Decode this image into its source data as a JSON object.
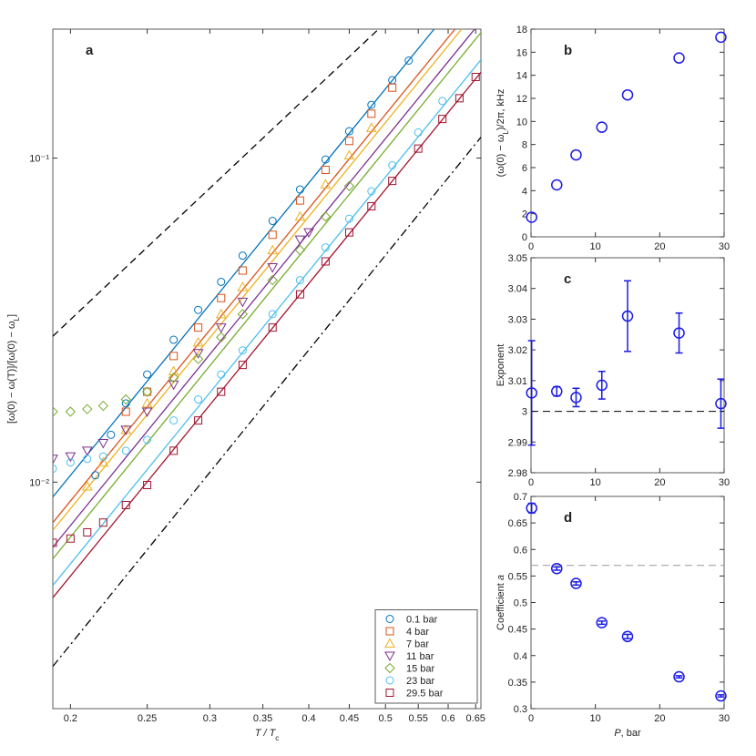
{
  "chart_data": [
    {
      "type": "scatter",
      "label": "a",
      "xlog": true,
      "ylog": true,
      "xlabel": "T / T",
      "xlabel_sub": "c",
      "ylabel": "[ω(0) − ω(T)]/[ω(0) − ω",
      "ylabel_sub": "L",
      "ylabel_end": "]",
      "xlim": [
        0.19,
        0.66
      ],
      "xticks": [
        0.2,
        0.25,
        0.3,
        0.35,
        0.4,
        0.45,
        0.5,
        0.55,
        0.6,
        0.65
      ],
      "ylim": [
        0.002,
        0.25
      ],
      "yticks": [
        {
          "value": 0.01,
          "label": "10⁻²"
        },
        {
          "value": 0.1,
          "label": "10⁻¹"
        }
      ],
      "legend": "lower right",
      "series": [
        {
          "name": "0.1 bar",
          "color": "#0072BD",
          "marker": "circle",
          "x": [
            0.215,
            0.225,
            0.235,
            0.25,
            0.27,
            0.29,
            0.31,
            0.33,
            0.36,
            0.39,
            0.42,
            0.45,
            0.48,
            0.51,
            0.535
          ],
          "values": [
            0.0105,
            0.014,
            0.0175,
            0.0215,
            0.0275,
            0.034,
            0.0415,
            0.05,
            0.064,
            0.08,
            0.099,
            0.121,
            0.146,
            0.174,
            0.2
          ]
        },
        {
          "name": "4 bar",
          "color": "#D95319",
          "marker": "square",
          "x": [
            0.235,
            0.25,
            0.27,
            0.29,
            0.31,
            0.33,
            0.36,
            0.39,
            0.42,
            0.45,
            0.48,
            0.51
          ],
          "values": [
            0.0165,
            0.019,
            0.0245,
            0.03,
            0.037,
            0.045,
            0.058,
            0.074,
            0.092,
            0.113,
            0.137,
            0.165
          ]
        },
        {
          "name": "7 bar",
          "color": "#EDB120",
          "marker": "triangle-up",
          "x": [
            0.21,
            0.22,
            0.235,
            0.25,
            0.27,
            0.29,
            0.31,
            0.33,
            0.36,
            0.39,
            0.42,
            0.45,
            0.48
          ],
          "values": [
            0.0097,
            0.0115,
            0.0145,
            0.0175,
            0.022,
            0.027,
            0.033,
            0.04,
            0.052,
            0.066,
            0.083,
            0.102,
            0.124
          ]
        },
        {
          "name": "11 bar",
          "color": "#7E2F8E",
          "marker": "triangle-down",
          "x": [
            0.19,
            0.2,
            0.21,
            0.22,
            0.235,
            0.25,
            0.27,
            0.29,
            0.31,
            0.33,
            0.36,
            0.39,
            0.4
          ],
          "values": [
            0.0118,
            0.012,
            0.0125,
            0.0132,
            0.0145,
            0.0165,
            0.02,
            0.025,
            0.03,
            0.036,
            0.046,
            0.056,
            0.059
          ]
        },
        {
          "name": "15 bar",
          "color": "#77AC30",
          "marker": "diamond",
          "x": [
            0.19,
            0.2,
            0.21,
            0.22,
            0.235,
            0.25,
            0.27,
            0.29,
            0.31,
            0.33,
            0.36,
            0.39,
            0.42,
            0.45
          ],
          "values": [
            0.0165,
            0.0165,
            0.0168,
            0.0172,
            0.018,
            0.019,
            0.021,
            0.024,
            0.028,
            0.033,
            0.042,
            0.052,
            0.066,
            0.082
          ]
        },
        {
          "name": "23 bar",
          "color": "#4DBEEE",
          "marker": "circle",
          "x": [
            0.19,
            0.2,
            0.21,
            0.22,
            0.235,
            0.25,
            0.27,
            0.29,
            0.31,
            0.33,
            0.36,
            0.39,
            0.42,
            0.45,
            0.48,
            0.51,
            0.55,
            0.59
          ],
          "values": [
            0.011,
            0.0115,
            0.0118,
            0.012,
            0.0125,
            0.0135,
            0.0155,
            0.018,
            0.0215,
            0.0255,
            0.033,
            0.042,
            0.053,
            0.065,
            0.079,
            0.095,
            0.12,
            0.15
          ]
        },
        {
          "name": "29.5 bar",
          "color": "#A2142F",
          "marker": "square",
          "x": [
            0.19,
            0.2,
            0.21,
            0.22,
            0.235,
            0.25,
            0.27,
            0.29,
            0.31,
            0.33,
            0.36,
            0.39,
            0.42,
            0.45,
            0.48,
            0.51,
            0.55,
            0.59,
            0.62,
            0.65
          ],
          "values": [
            0.0065,
            0.0067,
            0.007,
            0.0075,
            0.0085,
            0.0098,
            0.0125,
            0.0155,
            0.019,
            0.023,
            0.03,
            0.038,
            0.048,
            0.059,
            0.071,
            0.085,
            0.107,
            0.132,
            0.153,
            0.178
          ]
        }
      ],
      "fits": [
        {
          "color": "#0072BD",
          "x": [
            0.19,
            0.576
          ],
          "values": [
            0.009,
            0.25
          ]
        },
        {
          "color": "#D95319",
          "x": [
            0.19,
            0.612
          ],
          "values": [
            0.0075,
            0.25
          ]
        },
        {
          "color": "#EDB120",
          "x": [
            0.19,
            0.624
          ],
          "values": [
            0.0071,
            0.25
          ]
        },
        {
          "color": "#7E2F8E",
          "x": [
            0.19,
            0.648
          ],
          "values": [
            0.0063,
            0.25
          ]
        },
        {
          "color": "#77AC30",
          "x": [
            0.19,
            0.66
          ],
          "values": [
            0.0058,
            0.244
          ]
        },
        {
          "color": "#4DBEEE",
          "x": [
            0.19,
            0.66
          ],
          "values": [
            0.0048,
            0.201
          ]
        },
        {
          "color": "#A2142F",
          "x": [
            0.19,
            0.66
          ],
          "values": [
            0.0044,
            0.184
          ]
        }
      ],
      "reference_lines": [
        {
          "style": "dashed",
          "color": "#000000",
          "x": [
            0.19,
            0.49
          ],
          "values": [
            0.0282,
            0.25
          ]
        },
        {
          "style": "dashdot",
          "color": "#000000",
          "x": [
            0.19,
            0.66
          ],
          "values": [
            0.0027,
            0.116
          ]
        }
      ]
    },
    {
      "type": "scatter",
      "label": "b",
      "color": "#1a1ae6",
      "ylabel": "(ω(0) − ω",
      "ylabel_sub": "L",
      "ylabel_end": ")/2π, kHz",
      "x": [
        0.1,
        4,
        7,
        11,
        15,
        23,
        29.5
      ],
      "values": [
        1.7,
        4.5,
        7.1,
        9.5,
        12.3,
        15.5,
        17.3
      ],
      "xlim": [
        0,
        30
      ],
      "xticks": [
        0,
        10,
        20,
        30
      ],
      "ylim": [
        0,
        18
      ],
      "yticks": [
        0,
        2,
        4,
        6,
        8,
        10,
        12,
        14,
        16,
        18
      ]
    },
    {
      "type": "errorbar",
      "label": "c",
      "color": "#1a1ae6",
      "ylabel": "Exponent",
      "x": [
        0.1,
        4,
        7,
        11,
        15,
        23,
        29.5
      ],
      "values": [
        3.006,
        3.0065,
        3.0045,
        3.0085,
        3.031,
        3.0255,
        3.0025
      ],
      "errors": [
        0.017,
        0.0015,
        0.003,
        0.0045,
        0.0115,
        0.0065,
        0.008
      ],
      "hline": {
        "value": 3,
        "color": "#000000",
        "style": "dashed"
      },
      "xlim": [
        0,
        30
      ],
      "xticks": [
        0,
        10,
        20,
        30
      ],
      "ylim": [
        2.98,
        3.05
      ],
      "yticks": [
        2.98,
        2.99,
        3,
        3.01,
        3.02,
        3.03,
        3.04,
        3.05
      ]
    },
    {
      "type": "errorbar",
      "label": "d",
      "color": "#1a1ae6",
      "ylabel": "Coefficient ",
      "ylabel_italic": "a",
      "xlabel": "P",
      "xlabel_end": ", bar",
      "x": [
        0.1,
        4,
        7,
        11,
        15,
        23,
        29.5
      ],
      "values": [
        0.678,
        0.564,
        0.536,
        0.462,
        0.436,
        0.36,
        0.324
      ],
      "errors": [
        0.009,
        0.003,
        0.003,
        0.003,
        0.004,
        0.002,
        0.002
      ],
      "hline": {
        "value": 0.57,
        "color": "#999999",
        "style": "dashed"
      },
      "xlim": [
        0,
        30
      ],
      "xticks": [
        0,
        10,
        20,
        30
      ],
      "ylim": [
        0.3,
        0.7
      ],
      "yticks": [
        0.3,
        0.35,
        0.4,
        0.45,
        0.5,
        0.55,
        0.6,
        0.65,
        0.7
      ]
    }
  ]
}
